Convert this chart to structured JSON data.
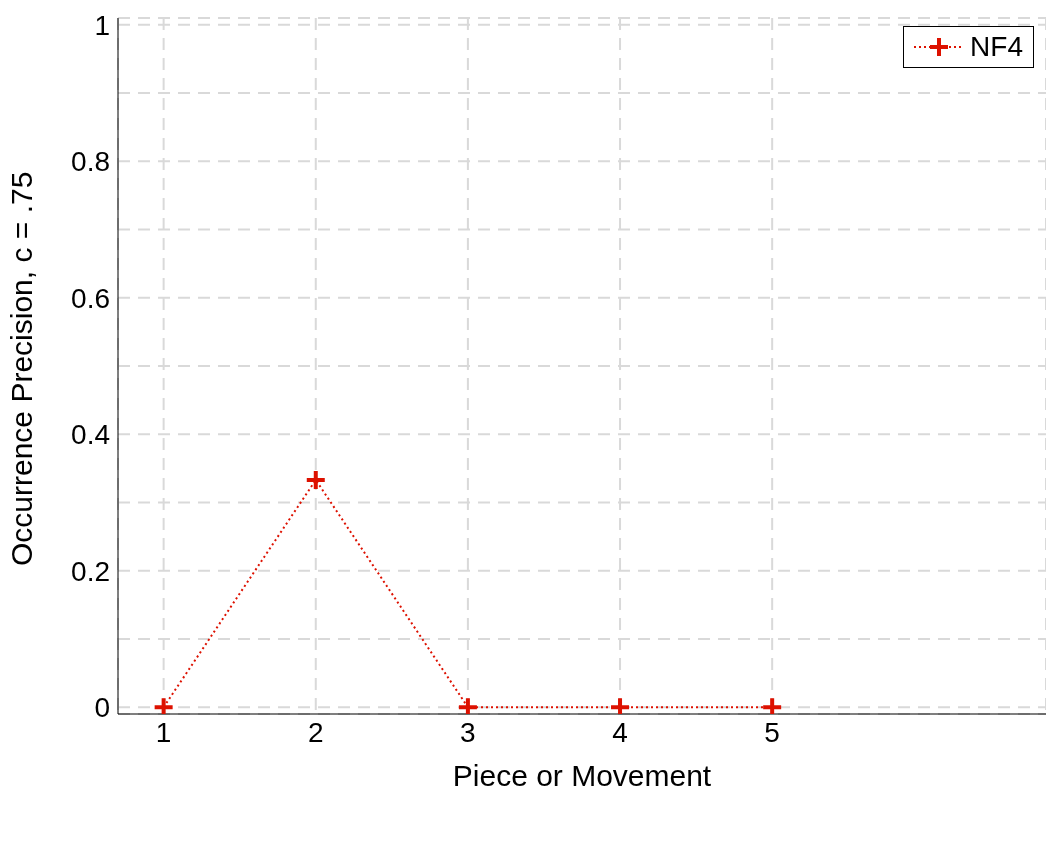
{
  "chart_data": {
    "type": "line",
    "xlabel": "Piece or Movement",
    "ylabel": "Occurrence Precision, c = .75",
    "x": [
      1,
      2,
      3,
      4,
      5
    ],
    "series": [
      {
        "name": "NF4",
        "color": "#dd1100",
        "values": [
          0,
          0.333,
          0,
          0,
          0
        ]
      }
    ],
    "xlim": [
      0.7,
      6.8
    ],
    "xticks": [
      1,
      2,
      3,
      4,
      5
    ],
    "ylim": [
      -0.01,
      1.01
    ],
    "yticks": [
      0,
      {
        "value": 0.1,
        "label": null
      },
      0.2,
      {
        "value": 0.3,
        "label": null
      },
      0.4,
      {
        "value": 0.5,
        "label": null
      },
      0.6,
      {
        "value": 0.7,
        "label": null
      },
      0.8,
      {
        "value": 0.9,
        "label": null
      },
      1
    ],
    "grid": true,
    "legend": "top right",
    "marker": "cross",
    "line_style": "dotted"
  }
}
